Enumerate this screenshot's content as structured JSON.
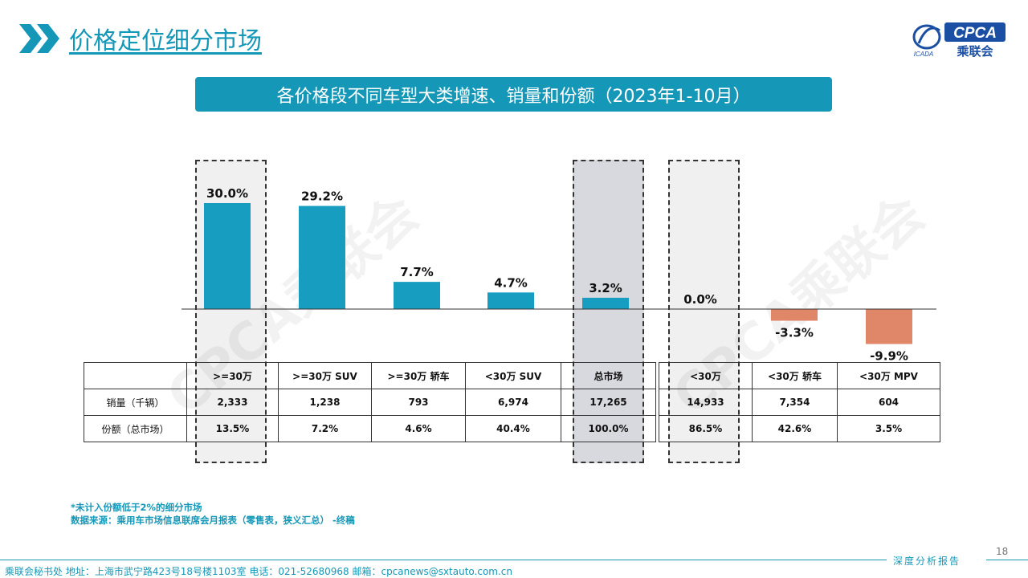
{
  "header": {
    "title": "价格定位细分市场",
    "subtitle": "各价格段不同车型大类增速、销量和份额（2023年1-10月）",
    "logo": {
      "text": "CPCA",
      "cn": "乘联会",
      "sub": "ICADA"
    }
  },
  "chart_data": {
    "type": "bar",
    "title": "各价格段不同车型大类增速、销量和份额（2023年1-10月）",
    "categories": [
      ">=30万",
      ">=30万 SUV",
      ">=30万 轿车",
      "<30万 SUV",
      "总市场",
      "<30万",
      "<30万 轿车",
      "<30万 MPV"
    ],
    "values": [
      30.0,
      29.2,
      7.7,
      4.7,
      3.2,
      0.0,
      -3.3,
      -9.9
    ],
    "value_labels": [
      "30.0%",
      "29.2%",
      "7.7%",
      "4.7%",
      "3.2%",
      "0.0%",
      "-3.3%",
      "-9.9%"
    ],
    "unit": "%",
    "colors": {
      "positive": "#179dbf",
      "negative": "#e0876a"
    },
    "grid": false,
    "highlighted": [
      ">=30万",
      "总市场",
      "<30万"
    ]
  },
  "table": {
    "headers": [
      "",
      ">=30万",
      ">=30万 SUV",
      ">=30万 轿车",
      "<30万 SUV",
      "总市场",
      "<30万",
      "<30万 轿车",
      "<30万 MPV"
    ],
    "rows": [
      {
        "label": "销量（千辆）",
        "cells": [
          "2,333",
          "1,238",
          "793",
          "6,974",
          "17,265",
          "14,933",
          "7,354",
          "604"
        ]
      },
      {
        "label": "份额（总市场）",
        "cells": [
          "13.5%",
          "7.2%",
          "4.6%",
          "40.4%",
          "100.0%",
          "86.5%",
          "42.6%",
          "3.5%"
        ]
      }
    ]
  },
  "watermark": "CPCA乘联会",
  "notes": [
    "*未计入份额低于2%的细分市场",
    "数据来源：乘用车市场信息联席会月报表（零售表，狭义汇总）  -终稿"
  ],
  "page_number": "18",
  "footer": {
    "tag": "深度分析报告",
    "contact": "乘联会秘书处   地址：上海市武宁路423号18号楼1103室   电话：021-52680968   邮箱：cpcanews@sxtauto.com.cn"
  }
}
